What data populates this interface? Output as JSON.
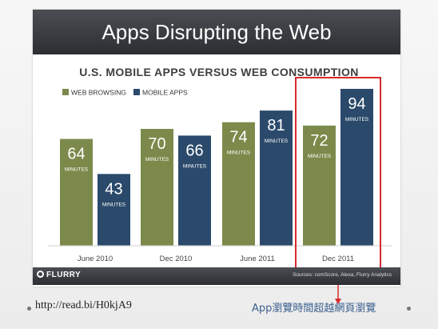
{
  "slide": {
    "banner_title": "Apps Disrupting the Web",
    "url": "http://read.bi/H0kjA9",
    "caption": "App瀏覽時間超越網頁瀏覽",
    "flurry": "FLURRY",
    "sources": "Sources: comScore, Alexa, Flurry Analytics"
  },
  "colors": {
    "web": "#7b8a4b",
    "mobile": "#2b4a6b",
    "highlight": "#d62b2b"
  },
  "chart_data": {
    "type": "bar",
    "title": "U.S. MOBILE APPS VERSUS WEB CONSUMPTION",
    "categories": [
      "June 2010",
      "Dec 2010",
      "June 2011",
      "Dec 2011"
    ],
    "series": [
      {
        "name": "WEB BROWSING",
        "values": [
          64,
          70,
          74,
          72
        ]
      },
      {
        "name": "MOBILE APPS",
        "values": [
          43,
          66,
          81,
          94
        ]
      }
    ],
    "unit_label": "MINUTES",
    "ylim": [
      0,
      100
    ],
    "grid": false,
    "legend": "top-left",
    "highlight_category": "Dec 2011"
  }
}
